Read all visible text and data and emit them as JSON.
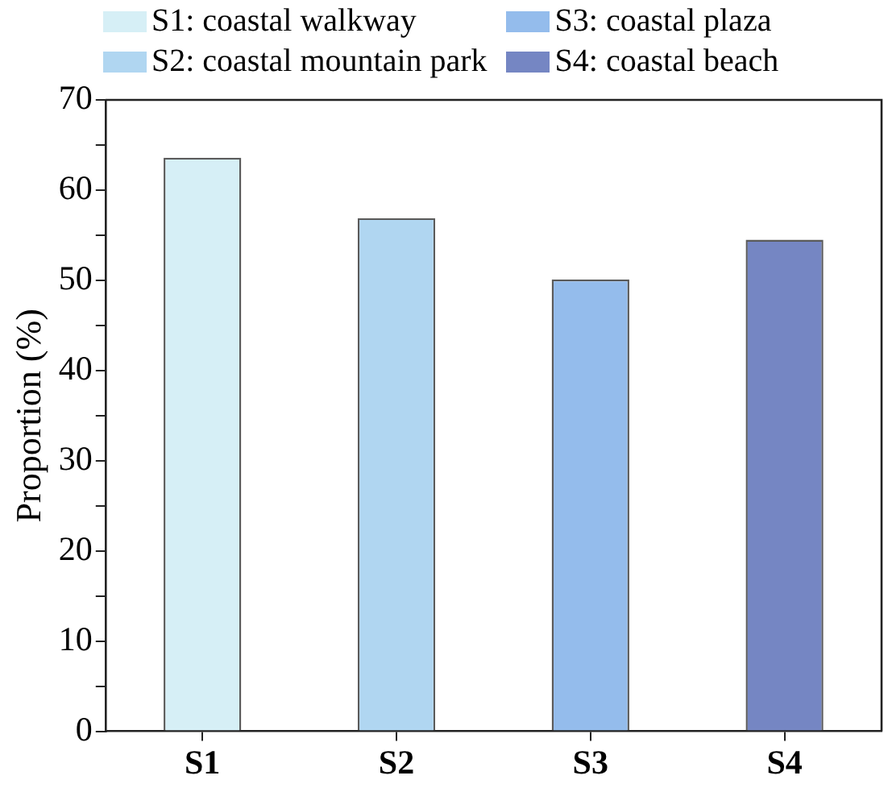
{
  "chart_data": {
    "type": "bar",
    "categories": [
      "S1",
      "S2",
      "S3",
      "S4"
    ],
    "ylabel": "Proportion (%)",
    "ylim": [
      0,
      70
    ],
    "yticks": [
      0,
      {
        "value": 5,
        "label": null
      },
      10,
      {
        "value": 15,
        "label": null
      },
      20,
      {
        "value": 25,
        "label": null
      },
      30,
      {
        "value": 35,
        "label": null
      },
      40,
      {
        "value": 45,
        "label": null
      },
      50,
      {
        "value": 55,
        "label": null
      },
      60,
      {
        "value": 65,
        "label": null
      },
      70
    ],
    "series": [
      {
        "name": "S1: coastal walkway",
        "color": "#d6eff6",
        "values": [
          63.6,
          null,
          null,
          null
        ]
      },
      {
        "name": "S2: coastal mountain park",
        "color": "#b0d6f1",
        "values": [
          null,
          56.9,
          null,
          null
        ]
      },
      {
        "name": "S3: coastal plaza",
        "color": "#94bcec",
        "values": [
          null,
          null,
          50.1,
          null
        ]
      },
      {
        "name": "S4: coastal beach",
        "color": "#7586c3",
        "values": [
          null,
          null,
          null,
          54.5
        ]
      }
    ],
    "legend": "top",
    "grid": false
  }
}
